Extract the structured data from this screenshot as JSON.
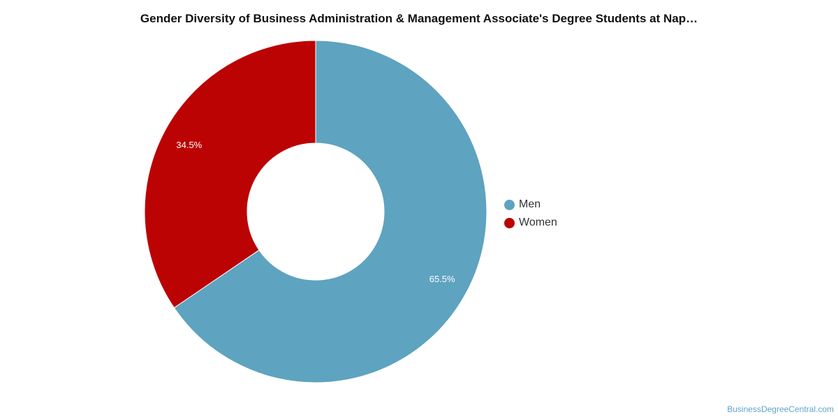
{
  "title": "Gender Diversity of Business Administration & Management Associate's Degree Students at Nap…",
  "watermark": "BusinessDegreeCentral.com",
  "chart_data": {
    "type": "pie",
    "donut": true,
    "categories": [
      "Men",
      "Women"
    ],
    "values": [
      65.5,
      34.5
    ],
    "value_labels": [
      "65.5%",
      "34.5%"
    ],
    "colors": [
      "#5ea3bf",
      "#bb0303"
    ],
    "legend_position": "right",
    "title": "Gender Diversity of Business Administration & Management Associate's Degree Students at Nap…"
  },
  "legend": {
    "items": [
      {
        "label": "Men",
        "color": "#5ea3bf"
      },
      {
        "label": "Women",
        "color": "#bb0303"
      }
    ]
  }
}
